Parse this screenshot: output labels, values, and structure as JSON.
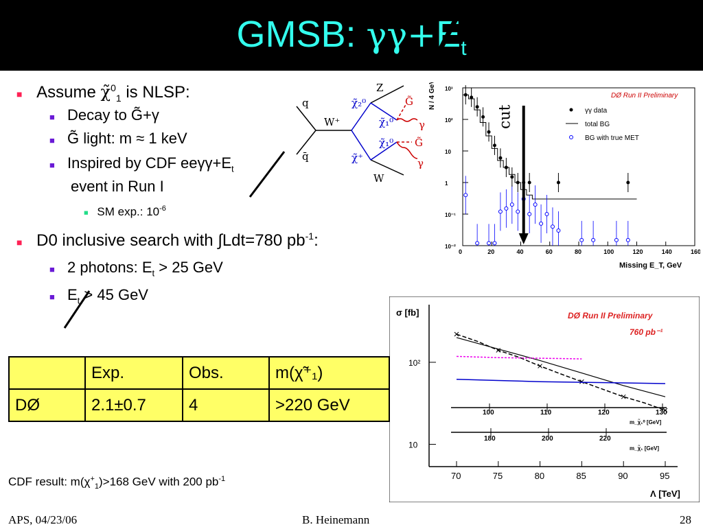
{
  "slide": {
    "title_text": "GMSB: ",
    "title_greek": "γγ+",
    "title_E": "E",
    "title_sub": "t",
    "bullets": {
      "b1_prefix": "Assume ",
      "b1_chi": "χ̃",
      "b1_sup": "0",
      "b1_sub": "1",
      "b1_suffix": " is NLSP:",
      "b1a": "Decay to G̃+γ",
      "b1b": "G̃ light: m ≈ 1 keV",
      "b1c_prefix": "Inspired by CDF eeγγ+E",
      "b1c_sub": "t",
      "b1c_line2": "event in Run I",
      "b1c1_prefix": "SM exp.: 10",
      "b1c1_sup": "-6",
      "b2_prefix": "D0 inclusive search with ∫Ldt=780 pb",
      "b2_sup": "-1",
      "b2_suffix": ":",
      "b2a_prefix": "2 photons: E",
      "b2a_sub": "t",
      "b2a_suffix": " > 25 GeV",
      "b2b_prefix": "E",
      "b2b_sub": "t",
      "b2b_suffix": " > 45 GeV"
    },
    "table": {
      "header": [
        "",
        "Exp.",
        "Obs.",
        "m(χ̃⁺₁)"
      ],
      "row": [
        "DØ",
        "2.1±0.7",
        "4",
        ">220 GeV"
      ]
    },
    "cdf_prefix": "CDF result: m(χ",
    "cdf_sup": "+",
    "cdf_sub": "1",
    "cdf_mid": ")>168 GeV with 200 pb",
    "cdf_sup2": "-1",
    "footer": {
      "left": "APS, 04/23/06",
      "center": "B. Heinemann",
      "right": "28"
    }
  },
  "diagram": {
    "labels": [
      "q",
      "q̄",
      "W⁺",
      "χ̃₂⁰",
      "χ̃₁⁰",
      "χ̃₁⁰",
      "χ̃⁺",
      "Z",
      "W",
      "G̃",
      "γ",
      "G̃",
      "γ"
    ]
  },
  "chart_data": [
    {
      "type": "scatter",
      "title": "DØ Run II Preliminary",
      "xlabel": "Missing E_T, GeV",
      "ylabel": "N / 4 GeV",
      "log_y": true,
      "xlim": [
        0,
        160
      ],
      "ylim": [
        0.01,
        1000
      ],
      "x_ticks": [
        "0",
        "20",
        "40",
        "60",
        "80",
        "100",
        "120",
        "140",
        "160"
      ],
      "y_ticks": [
        "10⁻²",
        "10⁻¹",
        "1",
        "10",
        "10²",
        "10³"
      ],
      "cut_label": "cut",
      "cut_x": 42,
      "legend": [
        "γγ data",
        "total BG",
        "BG with true MET"
      ],
      "legend_position": "top-right",
      "series": [
        {
          "name": "γγ data",
          "x": [
            2,
            6,
            10,
            14,
            18,
            22,
            26,
            30,
            34,
            38,
            42,
            46,
            66,
            114
          ],
          "y": [
            600,
            500,
            250,
            120,
            40,
            15,
            6,
            3,
            1.5,
            1,
            1,
            1,
            1,
            1
          ]
        },
        {
          "name": "total BG",
          "x": [
            2,
            6,
            10,
            14,
            18,
            22,
            26,
            30,
            34,
            38,
            42,
            46,
            50,
            54,
            58,
            62,
            66,
            70,
            102,
            106,
            114,
            118
          ],
          "y": [
            600,
            450,
            200,
            80,
            30,
            12,
            5,
            3,
            1.8,
            1,
            0.6,
            0.4,
            0.3,
            0.3,
            0.3,
            0.3,
            0.3,
            0.3,
            0.3,
            0.3,
            0.3,
            0.3
          ]
        },
        {
          "name": "BG with true MET",
          "x": [
            2,
            10,
            18,
            22,
            26,
            30,
            34,
            38,
            42,
            46,
            50,
            54,
            58,
            62,
            66,
            82,
            90,
            106,
            114
          ],
          "y": [
            0.4,
            0.012,
            0.012,
            0.012,
            0.12,
            0.15,
            0.2,
            0.12,
            0.3,
            0.1,
            0.2,
            0.05,
            0.1,
            0.04,
            0.03,
            0.015,
            0.015,
            0.015,
            0.015
          ]
        }
      ]
    },
    {
      "type": "line",
      "title": "DØ Run II Preliminary",
      "subtitle": "760 pb⁻¹",
      "ylabel": "σ [fb]",
      "xlabel": "Λ [TeV]",
      "log_y": true,
      "xlim": [
        70,
        95
      ],
      "ylim": [
        6,
        400
      ],
      "x_ticks": [
        "70",
        "75",
        "80",
        "85",
        "90",
        "95"
      ],
      "y_ticks": [
        "10",
        "10²"
      ],
      "axis2_label": "m_χ̃₁⁰ [GeV]",
      "axis2_ticks": [
        "100",
        "110",
        "120",
        "130"
      ],
      "axis3_label": "m_χ̃₁ [GeV]",
      "axis3_ticks": [
        "180",
        "200",
        "220"
      ],
      "series": [
        {
          "x": [
            70,
            72.5,
            75,
            77.5,
            80,
            82.5,
            85,
            87.5,
            90,
            92.5,
            95
          ],
          "y": [
            220,
            180,
            140,
            115,
            90,
            72,
            58,
            47,
            38,
            32,
            26
          ]
        },
        {
          "x": [
            70,
            75,
            80,
            85,
            90,
            95
          ],
          "y": [
            200,
            145,
            105,
            74,
            52,
            38
          ]
        },
        {
          "x": [
            70,
            75,
            80,
            85
          ],
          "y": [
            118,
            114,
            112,
            110
          ]
        },
        {
          "x": [
            70,
            75,
            80,
            85,
            90,
            95
          ],
          "y": [
            62,
            60,
            58,
            57,
            56,
            55
          ]
        }
      ]
    }
  ]
}
